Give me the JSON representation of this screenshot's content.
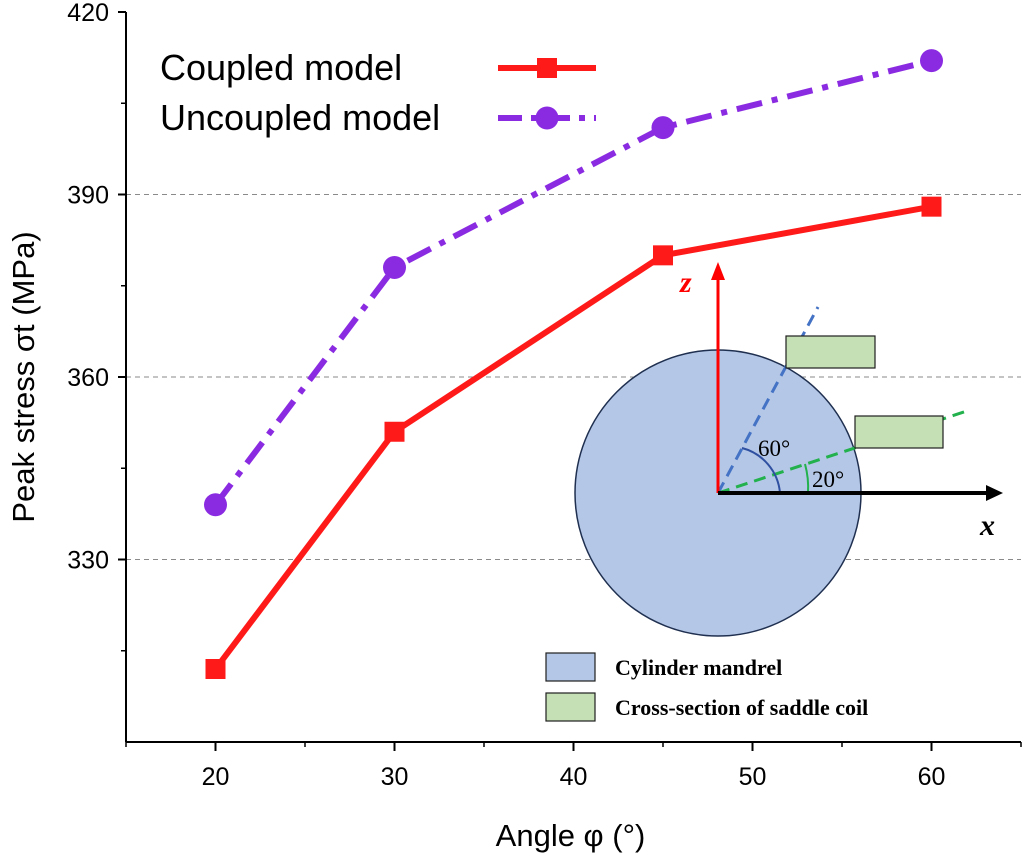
{
  "chart_data": {
    "type": "line",
    "xlabel": "Angle φ (°)",
    "ylabel": "Peak stress σt (MPa)",
    "xlim": [
      15,
      65
    ],
    "ylim": [
      300,
      420
    ],
    "xticks": [
      20,
      30,
      40,
      50,
      60
    ],
    "yticks": [
      330,
      360,
      390,
      420
    ],
    "grid": true,
    "legend_position": "top-left",
    "series": [
      {
        "name": "Coupled model",
        "color": "#ff1a1a",
        "marker": "square",
        "line_style": "solid",
        "x": [
          20,
          30,
          45,
          60
        ],
        "y": [
          312,
          351,
          380,
          388
        ]
      },
      {
        "name": "Uncoupled model",
        "color": "#8a2be2",
        "marker": "circle",
        "line_style": "dash-dot",
        "x": [
          20,
          30,
          45,
          60
        ],
        "y": [
          339,
          378,
          401,
          412
        ]
      }
    ],
    "inset": {
      "axis_labels": {
        "z": "z",
        "x": "x"
      },
      "angles": [
        "60°",
        "20°"
      ],
      "legend": [
        {
          "label": "Cylinder mandrel",
          "color": "#b4c7e7"
        },
        {
          "label": "Cross-section of saddle coil",
          "color": "#c5e0b4"
        }
      ]
    }
  }
}
